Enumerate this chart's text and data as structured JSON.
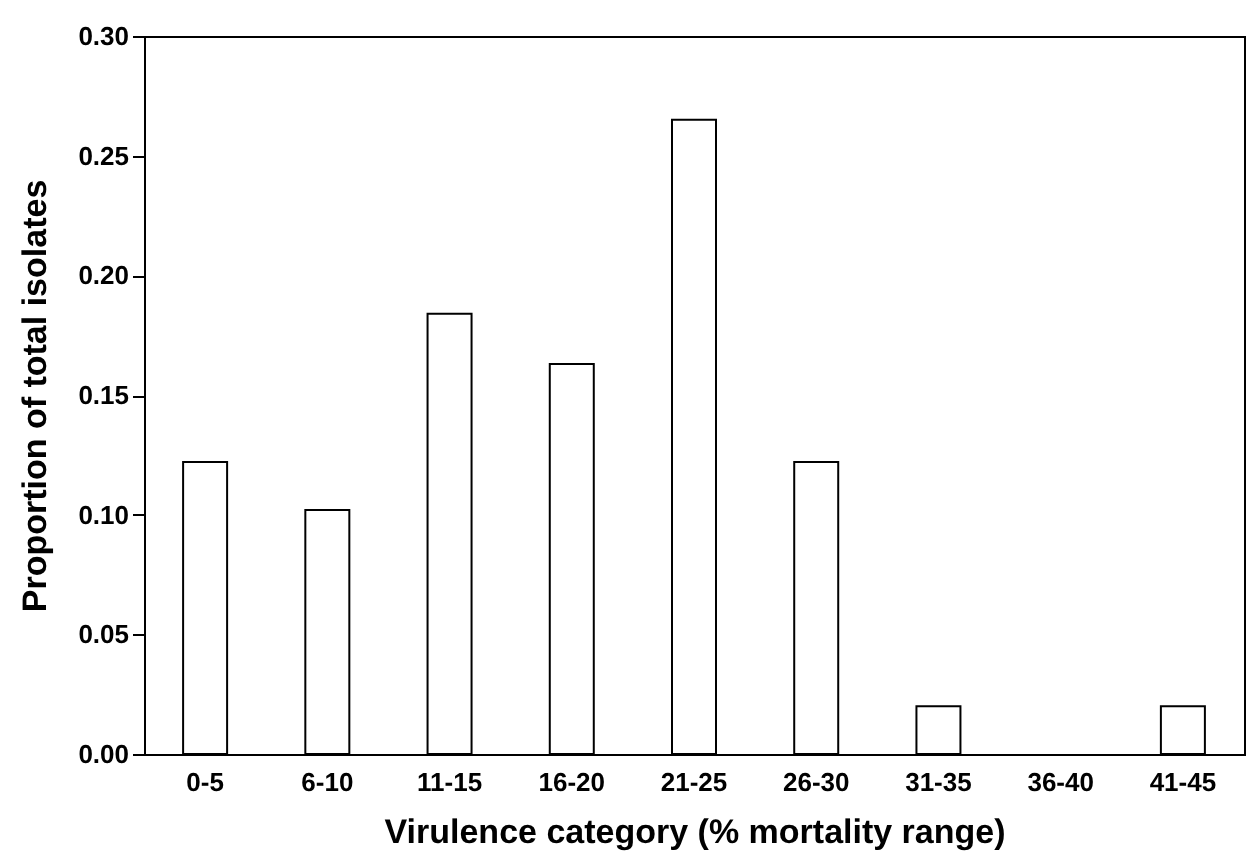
{
  "chart_data": {
    "type": "bar",
    "xlabel": "Virulence category (% mortality range)",
    "ylabel": "Proportion of total isolates",
    "categories": [
      "0-5",
      "6-10",
      "11-15",
      "16-20",
      "21-25",
      "26-30",
      "31-35",
      "36-40",
      "41-45"
    ],
    "values": [
      0.122,
      0.102,
      0.184,
      0.163,
      0.265,
      0.122,
      0.02,
      0,
      0.02
    ],
    "color": "#ffffff",
    "ylim": [
      0,
      0.3
    ],
    "yticks": [
      {
        "value": 0,
        "label": "0.00"
      },
      {
        "value": 0.05,
        "label": "0.05"
      },
      {
        "value": 0.1,
        "label": "0.10"
      },
      {
        "value": 0.15,
        "label": "0.15"
      },
      {
        "value": 0.2,
        "label": "0.20"
      },
      {
        "value": 0.25,
        "label": "0.25"
      },
      {
        "value": 0.3,
        "label": "0.30"
      }
    ],
    "grid": false
  }
}
